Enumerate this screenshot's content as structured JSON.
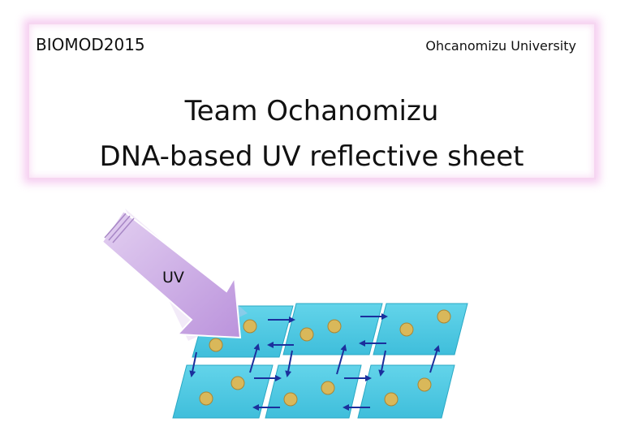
{
  "header": {
    "event": "BIOMOD2015",
    "university": "Ohcanomizu University",
    "title_line_1": "Team Ochanomizu",
    "title_line_2": "DNA-based UV reflective sheet"
  },
  "diagram": {
    "arrow_label": "UV",
    "colors": {
      "tile_fill": "#4dc9e3",
      "tile_stroke": "#2aa8c4",
      "dot_fill": "#d9b85a",
      "dot_stroke": "#a98634",
      "link_arrow": "#1b2f9c",
      "uv_arrow": "#c9a9e2"
    }
  }
}
